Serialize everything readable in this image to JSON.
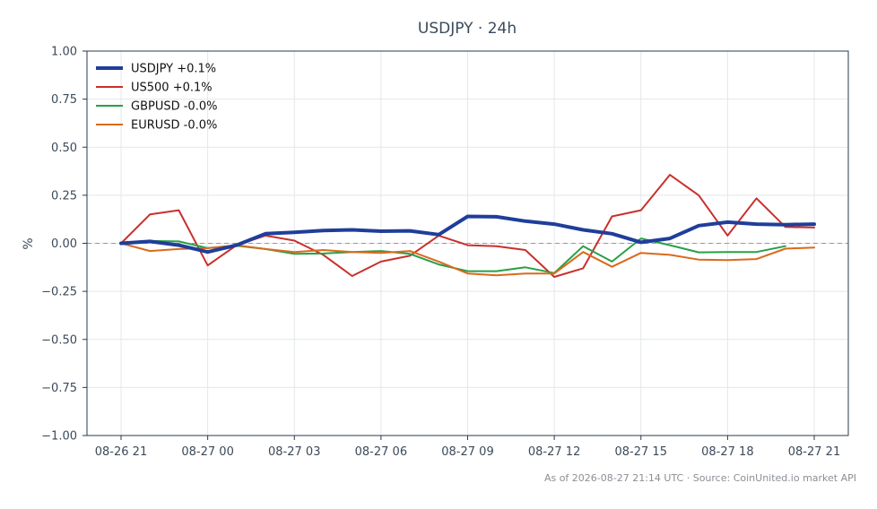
{
  "chart_data": {
    "type": "line",
    "title": "USDJPY · 24h",
    "ylabel": "%",
    "xlabel": "",
    "ylim": [
      -1.0,
      1.0
    ],
    "yticks": [
      1.0,
      0.75,
      0.5,
      0.25,
      0.0,
      -0.25,
      -0.5,
      -0.75,
      -1.0
    ],
    "ytick_labels": [
      "1.00",
      "0.75",
      "0.50",
      "0.25",
      "0.00",
      "−0.25",
      "−0.50",
      "−0.75",
      "−1.00"
    ],
    "xlim": [
      "08-26 21:00",
      "08-27 21:00"
    ],
    "xticks": [
      "08-26 21:00",
      "08-27 00:00",
      "08-27 03:00",
      "08-27 06:00",
      "08-27 09:00",
      "08-27 12:00",
      "08-27 15:00",
      "08-27 18:00",
      "08-27 21:00"
    ],
    "xtick_labels": [
      "08-26 21",
      "08-27 00",
      "08-27 03",
      "08-27 06",
      "08-27 09",
      "08-27 12",
      "08-27 15",
      "08-27 18",
      "08-27 21"
    ],
    "grid": true,
    "zero_line": true,
    "legend_position": "top-left",
    "x": [
      "08-26 21:00",
      "08-26 22:00",
      "08-26 23:00",
      "08-27 00:00",
      "08-27 01:00",
      "08-27 02:00",
      "08-27 03:00",
      "08-27 04:00",
      "08-27 05:00",
      "08-27 06:00",
      "08-27 07:00",
      "08-27 08:00",
      "08-27 09:00",
      "08-27 10:00",
      "08-27 11:00",
      "08-27 12:00",
      "08-27 13:00",
      "08-27 14:00",
      "08-27 15:00",
      "08-27 16:00",
      "08-27 17:00",
      "08-27 18:00",
      "08-27 19:00",
      "08-27 20:00",
      "08-27 21:00"
    ],
    "series": [
      {
        "name": "USDJPY +0.1%",
        "color": "#1f3e9a",
        "width": 4,
        "values": [
          0.0,
          0.01,
          -0.01,
          -0.045,
          -0.01,
          0.05,
          0.057,
          0.066,
          0.07,
          0.063,
          0.065,
          0.045,
          0.14,
          0.138,
          0.115,
          0.1,
          0.07,
          0.05,
          0.005,
          0.025,
          0.092,
          0.11,
          0.1,
          0.097,
          0.1
        ]
      },
      {
        "name": "US500 +0.1%",
        "color": "#c9302c",
        "width": 2,
        "values": [
          0.0,
          0.15,
          0.172,
          -0.115,
          -0.01,
          0.04,
          0.014,
          -0.06,
          -0.17,
          -0.095,
          -0.065,
          0.04,
          -0.01,
          -0.015,
          -0.035,
          -0.175,
          -0.13,
          0.14,
          0.172,
          0.356,
          0.25,
          0.04,
          0.234,
          0.085,
          0.082
        ]
      },
      {
        "name": "GBPUSD -0.0%",
        "color": "#27a047",
        "width": 2,
        "values": [
          0.0,
          0.012,
          0.01,
          -0.025,
          -0.013,
          -0.03,
          -0.055,
          -0.053,
          -0.045,
          -0.04,
          -0.055,
          -0.11,
          -0.145,
          -0.145,
          -0.125,
          -0.155,
          -0.015,
          -0.095,
          0.025,
          -0.01,
          -0.047,
          -0.045,
          -0.045,
          -0.015,
          null
        ]
      },
      {
        "name": "EURUSD -0.0%",
        "color": "#d96a1c",
        "width": 2,
        "values": [
          0.0,
          -0.04,
          -0.03,
          -0.025,
          -0.01,
          -0.03,
          -0.045,
          -0.035,
          -0.045,
          -0.05,
          -0.04,
          -0.095,
          -0.157,
          -0.167,
          -0.157,
          -0.157,
          -0.045,
          -0.122,
          -0.05,
          -0.06,
          -0.085,
          -0.087,
          -0.082,
          -0.028,
          -0.022
        ]
      }
    ],
    "footer": "As of 2026-08-27 21:14 UTC · Source: CoinUnited.io market API"
  }
}
